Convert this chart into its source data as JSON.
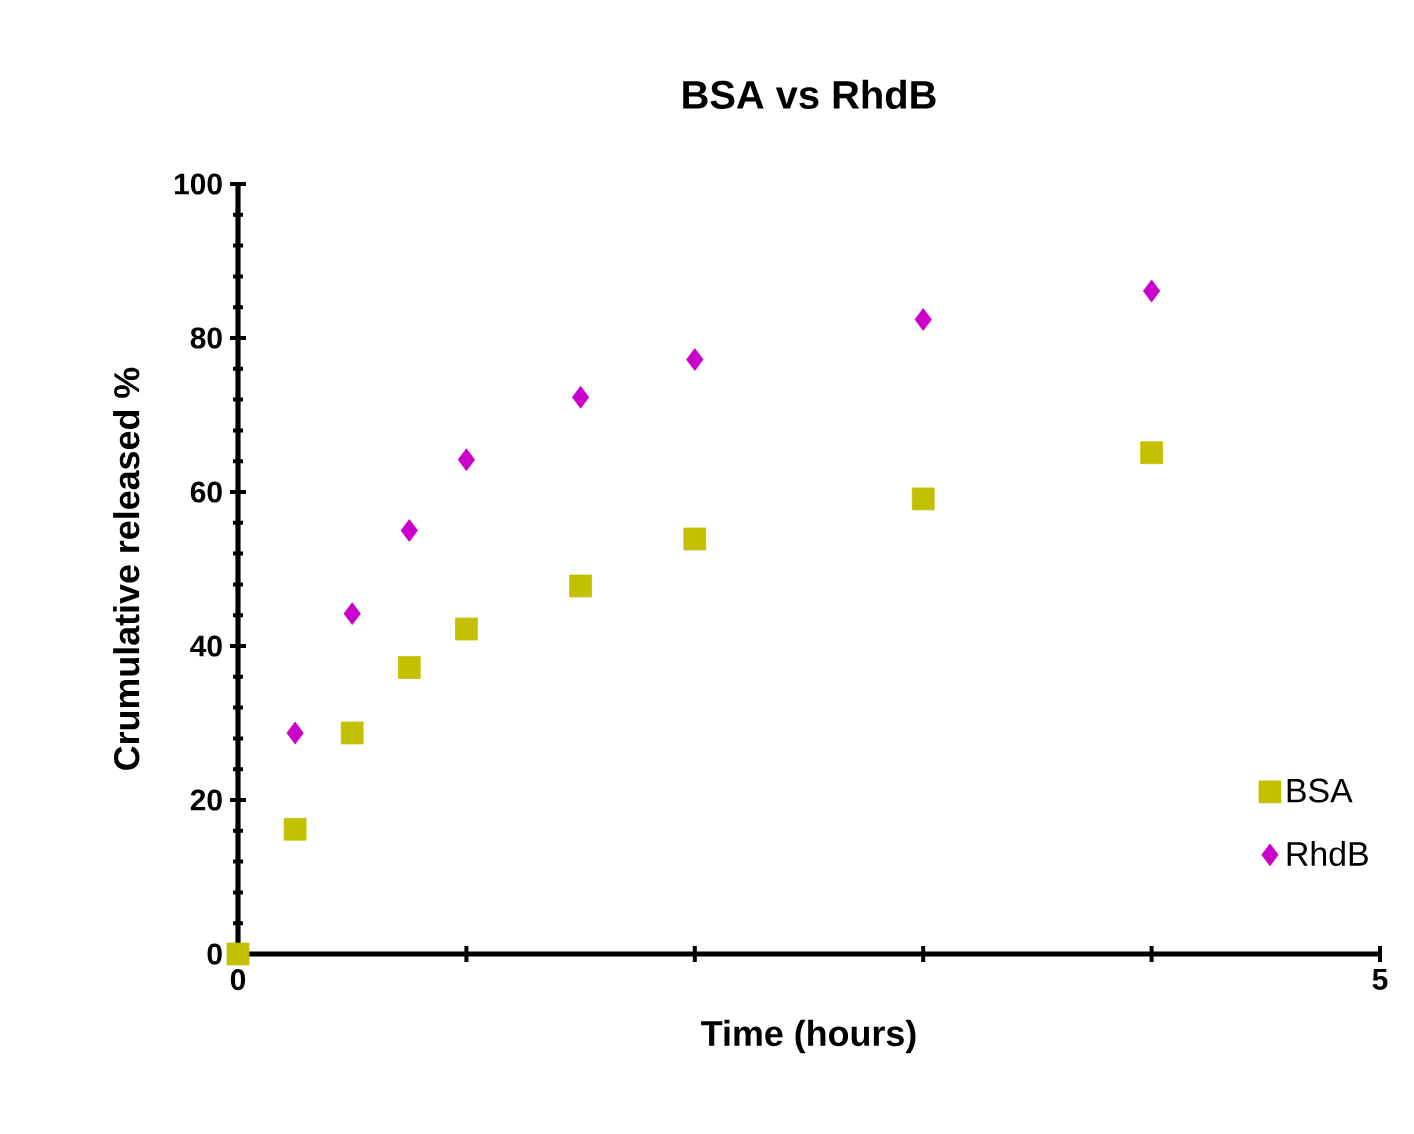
{
  "chart_data": {
    "type": "scatter",
    "title": "BSA vs RhdB",
    "xlabel": "Time (hours)",
    "ylabel": "Crumulative released  %",
    "xlim": [
      0,
      5
    ],
    "xticks": [
      0,
      {
        "value": 1,
        "label": null
      },
      {
        "value": 2,
        "label": null
      },
      {
        "value": 3,
        "label": null
      },
      {
        "value": 4,
        "label": null
      },
      5
    ],
    "ylim": [
      0,
      100
    ],
    "yticks": [
      0,
      20,
      40,
      60,
      80,
      100
    ],
    "legend": "bottom right",
    "grid": false,
    "series": [
      {
        "name": "BSA",
        "color": "#c2c000",
        "marker": "square",
        "x": [
          0,
          0.25,
          0.5,
          0.75,
          1,
          1.5,
          2,
          3,
          4
        ],
        "values": [
          0,
          16.2,
          28.7,
          37.2,
          42.2,
          47.8,
          53.9,
          59.1,
          65.1
        ]
      },
      {
        "name": "RhdB",
        "color": "#cc00cc",
        "marker": "diamond",
        "x": [
          0.25,
          0.5,
          0.75,
          1,
          1.5,
          2,
          3,
          4
        ],
        "values": [
          28.7,
          44.2,
          55.0,
          64.2,
          72.3,
          77.2,
          82.4,
          86.1
        ]
      }
    ]
  }
}
